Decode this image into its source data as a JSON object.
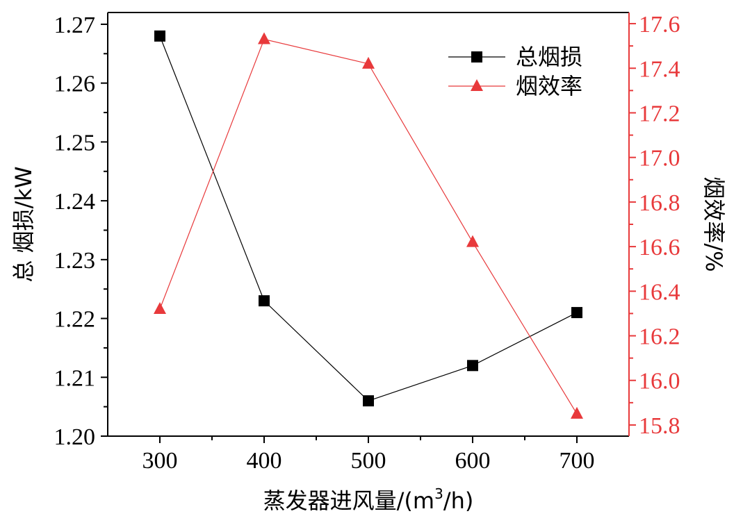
{
  "chart_data": {
    "type": "line",
    "x": [
      300,
      400,
      500,
      600,
      700
    ],
    "x_tick_labels": [
      "300",
      "400",
      "500",
      "600",
      "700"
    ],
    "xlim": [
      250,
      750
    ],
    "xlabel_main": "蒸发器进风量/(m",
    "xlabel_sup": "3",
    "xlabel_end": "/h)",
    "ylabel_left": "总 烟损/kW",
    "ylabel_right": "烟效率/%",
    "ylim_left": [
      1.2,
      1.272
    ],
    "ylim_right": [
      15.75,
      17.65
    ],
    "y_left_tick_labels": [
      "1.20",
      "1.21",
      "1.22",
      "1.23",
      "1.24",
      "1.25",
      "1.26",
      "1.27"
    ],
    "y_right_tick_labels": [
      "15.8",
      "16.0",
      "16.2",
      "16.4",
      "16.6",
      "16.8",
      "17.0",
      "17.2",
      "17.4",
      "17.6"
    ],
    "grid": false,
    "legend_position": "top-right",
    "series": [
      {
        "name": "总烟损",
        "axis": "left",
        "marker": "square",
        "color": "#000000",
        "values": [
          1.268,
          1.223,
          1.206,
          1.212,
          1.221
        ]
      },
      {
        "name": "烟效率",
        "axis": "right",
        "marker": "triangle",
        "color": "#e8393b",
        "values": [
          16.32,
          17.53,
          17.42,
          16.62,
          15.85
        ]
      }
    ]
  }
}
